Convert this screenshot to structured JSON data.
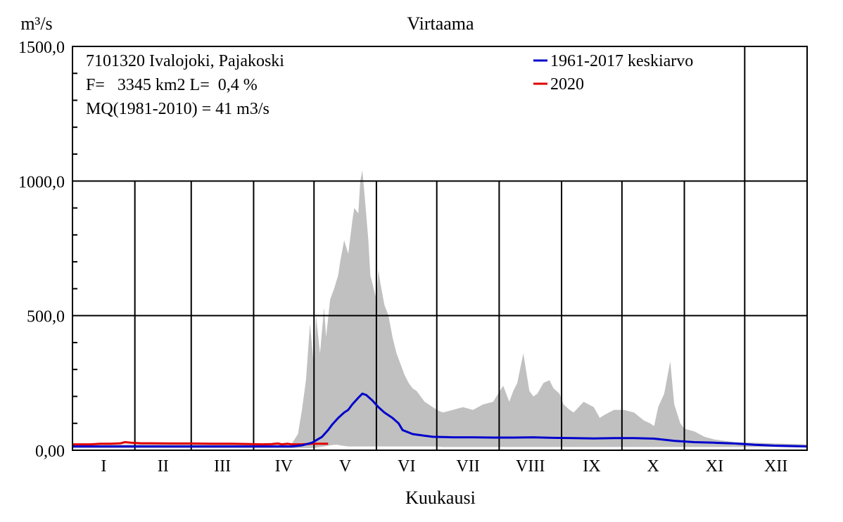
{
  "chart_data": {
    "type": "area",
    "title": "Virtaama",
    "ylabel": "m³/s",
    "xlabel": "Kuukausi",
    "ylim": [
      0,
      1500
    ],
    "yticks": [
      {
        "value": 0,
        "label": "0,00"
      },
      {
        "value": 500,
        "label": "500,0"
      },
      {
        "value": 1000,
        "label": "1000,0"
      },
      {
        "value": 1500,
        "label": "1500,0"
      }
    ],
    "months": [
      "I",
      "II",
      "III",
      "IV",
      "V",
      "VI",
      "VII",
      "VIII",
      "IX",
      "X",
      "XI",
      "XII"
    ],
    "x_unit": "day of year",
    "xlim": [
      1,
      366
    ],
    "info": {
      "station": "7101320 Ivalojoki, Pajakoski",
      "area": "F=   3345 km2 L=  0,4 %",
      "mq": "MQ(1981-2010) = 41 m3/s"
    },
    "legend": {
      "position": "top-right",
      "entries": [
        {
          "label": "1961-2017 keskiarvo",
          "color": "#0000cc"
        },
        {
          "label": "2020",
          "color": "#e00000"
        }
      ]
    },
    "range_band": {
      "color": "#c0c0c0",
      "x": [
        1,
        110,
        113,
        115,
        117,
        119,
        121,
        122,
        124,
        126,
        127,
        129,
        131,
        133,
        134,
        136,
        138,
        140,
        141,
        143,
        144,
        145,
        146,
        147,
        148,
        149,
        150,
        152,
        153,
        154,
        156,
        158,
        160,
        162,
        164,
        166,
        168,
        170,
        172,
        174,
        176,
        178,
        180,
        182,
        185,
        190,
        195,
        200,
        205,
        210,
        215,
        218,
        220,
        222,
        225,
        228,
        230,
        232,
        235,
        238,
        240,
        243,
        245,
        248,
        250,
        255,
        260,
        263,
        265,
        270,
        275,
        280,
        285,
        288,
        290,
        292,
        295,
        298,
        300,
        303,
        305,
        310,
        315,
        320,
        325,
        330,
        340,
        350,
        366
      ],
      "max": [
        20,
        25,
        60,
        150,
        260,
        470,
        310,
        500,
        360,
        530,
        420,
        560,
        600,
        650,
        700,
        780,
        730,
        850,
        900,
        880,
        1000,
        1040,
        960,
        870,
        780,
        650,
        620,
        560,
        670,
        620,
        540,
        500,
        420,
        360,
        320,
        280,
        250,
        230,
        220,
        200,
        180,
        170,
        160,
        150,
        140,
        150,
        160,
        150,
        170,
        180,
        240,
        180,
        220,
        250,
        360,
        220,
        200,
        210,
        250,
        260,
        230,
        210,
        170,
        150,
        140,
        180,
        160,
        120,
        130,
        150,
        150,
        140,
        110,
        100,
        90,
        160,
        210,
        330,
        170,
        100,
        80,
        70,
        50,
        40,
        35,
        30,
        28,
        25,
        22
      ],
      "min": [
        8,
        8,
        8,
        8,
        8,
        8,
        8,
        10,
        12,
        14,
        16,
        18,
        20,
        20,
        18,
        16,
        14,
        14,
        14,
        14,
        14,
        14,
        14,
        14,
        14,
        14,
        14,
        14,
        14,
        14,
        14,
        14,
        14,
        14,
        14,
        14,
        14,
        14,
        14,
        14,
        14,
        14,
        14,
        14,
        12,
        12,
        12,
        12,
        12,
        12,
        12,
        12,
        12,
        12,
        12,
        12,
        12,
        12,
        12,
        12,
        12,
        12,
        12,
        12,
        12,
        12,
        12,
        12,
        12,
        12,
        12,
        12,
        12,
        12,
        12,
        12,
        12,
        12,
        12,
        12,
        12,
        12,
        12,
        12,
        12,
        12,
        12,
        12,
        10
      ]
    },
    "series": [
      {
        "name": "1961-2017 keskiarvo",
        "color": "#0000cc",
        "x": [
          1,
          100,
          110,
          115,
          120,
          125,
          128,
          130,
          133,
          136,
          138,
          140,
          143,
          145,
          147,
          150,
          153,
          156,
          158,
          160,
          163,
          165,
          170,
          175,
          180,
          190,
          200,
          210,
          220,
          230,
          240,
          250,
          260,
          270,
          280,
          290,
          300,
          310,
          320,
          330,
          340,
          350,
          366
        ],
        "y": [
          14,
          14,
          14,
          18,
          28,
          50,
          75,
          95,
          120,
          140,
          150,
          170,
          195,
          210,
          205,
          185,
          160,
          140,
          130,
          120,
          100,
          75,
          60,
          55,
          50,
          48,
          48,
          47,
          47,
          48,
          46,
          45,
          44,
          45,
          45,
          43,
          35,
          30,
          28,
          25,
          20,
          17,
          14
        ]
      },
      {
        "name": "2020",
        "color": "#e00000",
        "x": [
          1,
          10,
          15,
          20,
          25,
          27,
          30,
          35,
          40,
          50,
          60,
          70,
          80,
          90,
          95,
          100,
          103,
          105,
          108,
          110,
          115,
          120,
          125,
          128
        ],
        "y": [
          22,
          22,
          24,
          24,
          26,
          30,
          28,
          26,
          26,
          25,
          25,
          24,
          24,
          23,
          22,
          23,
          25,
          22,
          24,
          22,
          22,
          24,
          24,
          24
        ]
      }
    ]
  }
}
